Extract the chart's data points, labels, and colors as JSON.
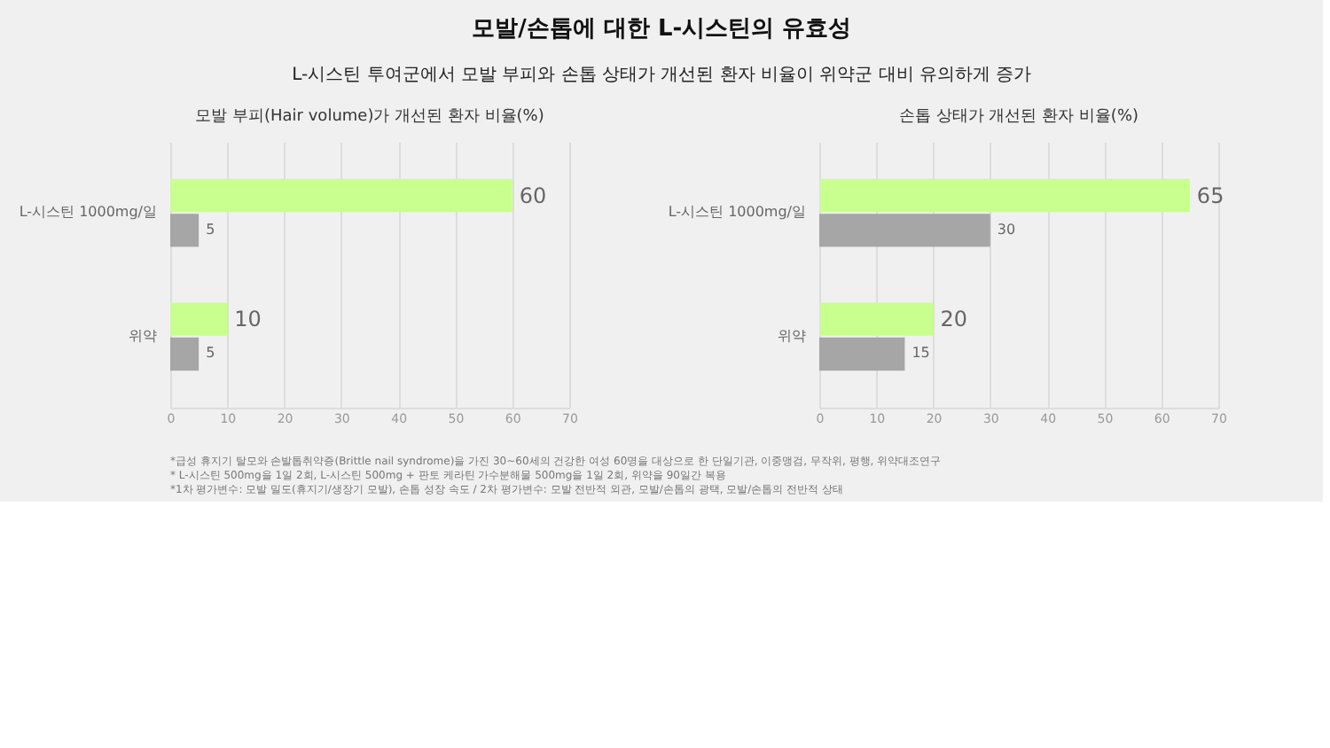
{
  "chart_data": [
    {
      "type": "bar",
      "orientation": "horizontal",
      "title": "모발 부피(Hair volume)가 개선된 환자 비율(%)",
      "categories": [
        "L-시스틴 1000mg/일",
        "위약"
      ],
      "series": [
        {
          "color": "#c8ff8e",
          "values": [
            60,
            10
          ]
        },
        {
          "color": "#a6a6a6",
          "values": [
            5,
            5
          ]
        }
      ],
      "xlim": [
        0,
        70
      ],
      "xticks": [
        0,
        10,
        20,
        30,
        40,
        50,
        60,
        70
      ],
      "grid": "x",
      "data_labels": true
    },
    {
      "type": "bar",
      "orientation": "horizontal",
      "title": "손톱 상태가 개선된 환자 비율(%)",
      "categories": [
        "L-시스틴 1000mg/일",
        "위약"
      ],
      "series": [
        {
          "color": "#c8ff8e",
          "values": [
            65,
            20
          ]
        },
        {
          "color": "#a6a6a6",
          "values": [
            30,
            15
          ]
        }
      ],
      "xlim": [
        0,
        70
      ],
      "xticks": [
        0,
        10,
        20,
        30,
        40,
        50,
        60,
        70
      ],
      "grid": "x",
      "data_labels": true
    },
    {
      "type": "other",
      "title": "모발/손톱에 대한 L-시스틴의 유효성",
      "subtitle": "L-시스틴 투여군에서 모발 부피와 손톱 상태가 개선된 환자 비율이 위약군 대비 유의하게 증가",
      "annotations": [
        "*급성 휴지기 탈모와 손발톱취약증(Brittle nail syndrome)을 가진 30~60세의 건강한 여성 60명을 대상으로 한 단일기관, 이중맹검, 무작위, 평행, 위약대조연구",
        "* L-시스틴 500mg을 1일 2회, L-시스틴 500mg + 판토 케라틴 가수분해물 500mg을 1일 2회, 위약을 90일간 복용",
        "*1차 평가변수: 모발 밀도(휴지기/생장기 모발), 손톱 성장 속도 / 2차 평가변수: 모발 전반적 외관, 모발/손톱의 광택, 모발/손톱의 전반적 상태"
      ]
    }
  ]
}
